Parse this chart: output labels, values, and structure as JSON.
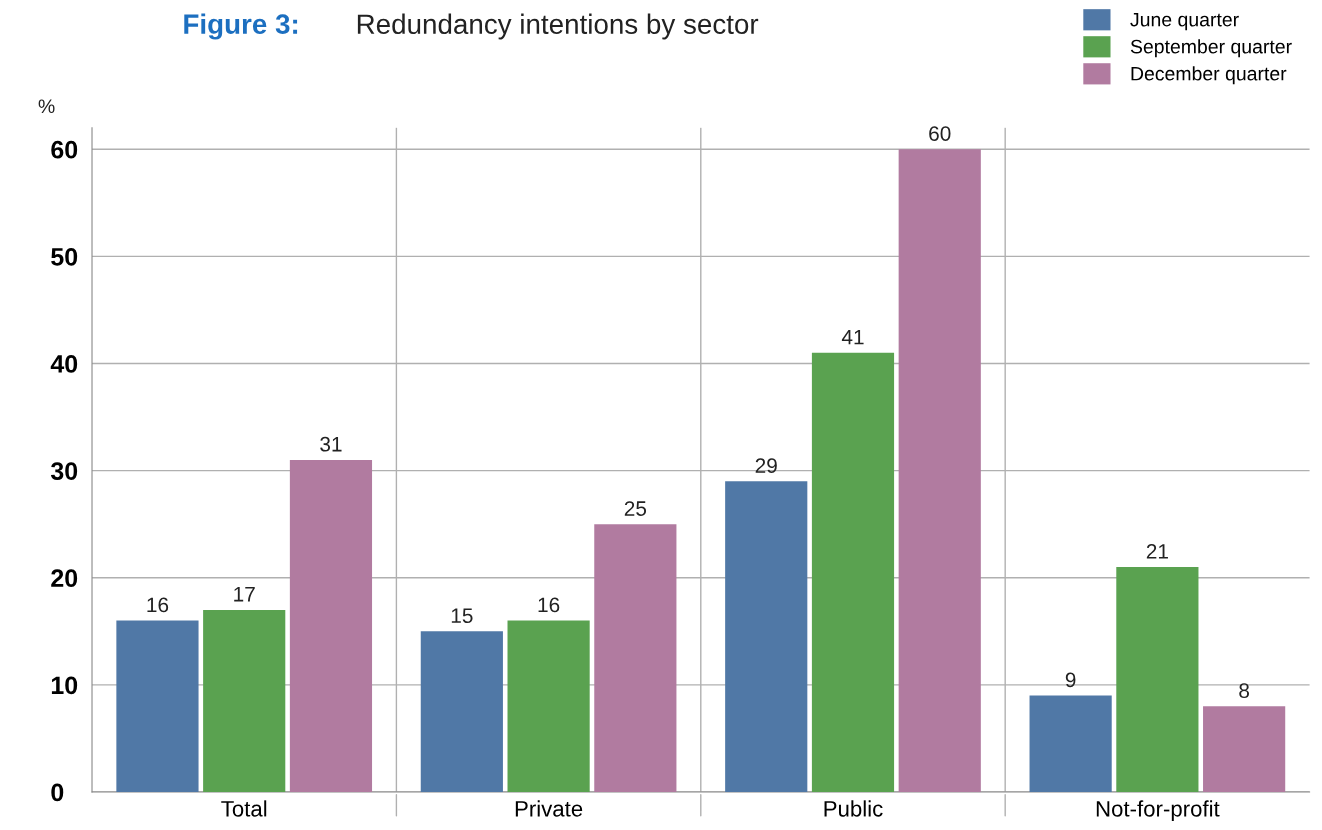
{
  "chart_data": {
    "type": "bar",
    "title": "Figure 3:",
    "subtitle": "Redundancy intentions by sector",
    "ylabel": "%",
    "categories": [
      "Total",
      "Private",
      "Public",
      "Not-for-profit"
    ],
    "series": [
      {
        "name": "June quarter",
        "color": "#5078a6",
        "values": [
          16,
          15,
          29,
          9
        ]
      },
      {
        "name": "September quarter",
        "color": "#5aa250",
        "values": [
          17,
          16,
          41,
          21
        ]
      },
      {
        "name": "December quarter",
        "color": "#b17ba0",
        "values": [
          31,
          25,
          60,
          8
        ]
      }
    ],
    "ylim": [
      0,
      62
    ],
    "yticks": [
      0,
      10,
      20,
      30,
      40,
      50,
      60
    ],
    "grid": true,
    "legend": "top right",
    "data_labels": true
  }
}
